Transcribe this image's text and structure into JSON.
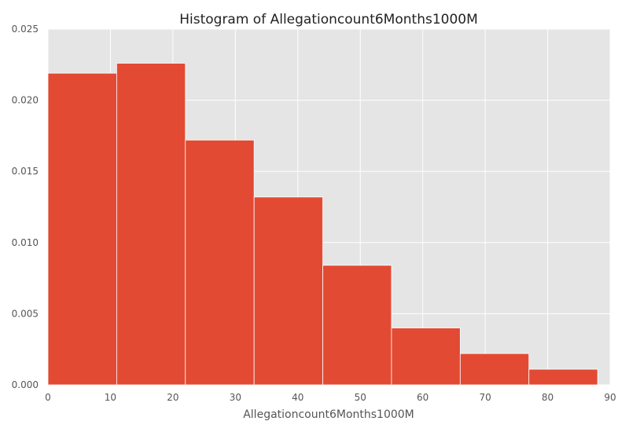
{
  "chart_data": {
    "type": "bar",
    "title": "Histogram of Allegationcount6Months1000M",
    "xlabel": "Allegationcount6Months1000M",
    "ylabel": "",
    "xlim": [
      0,
      90
    ],
    "ylim": [
      0,
      0.025
    ],
    "xticks": [
      "0",
      "10",
      "20",
      "30",
      "40",
      "50",
      "60",
      "70",
      "80",
      "90"
    ],
    "yticks": [
      "0.000",
      "0.005",
      "0.010",
      "0.015",
      "0.020",
      "0.025"
    ],
    "grid": true,
    "bar_color": "#E24A33",
    "background_color": "#E5E5E5",
    "bins": [
      {
        "x0": 0,
        "x1": 11,
        "value": 0.0219
      },
      {
        "x0": 11,
        "x1": 22,
        "value": 0.0226
      },
      {
        "x0": 22,
        "x1": 33,
        "value": 0.0172
      },
      {
        "x0": 33,
        "x1": 44,
        "value": 0.0132
      },
      {
        "x0": 44,
        "x1": 55,
        "value": 0.0084
      },
      {
        "x0": 55,
        "x1": 66,
        "value": 0.004
      },
      {
        "x0": 66,
        "x1": 77,
        "value": 0.0022
      },
      {
        "x0": 77,
        "x1": 88,
        "value": 0.0011
      }
    ]
  }
}
